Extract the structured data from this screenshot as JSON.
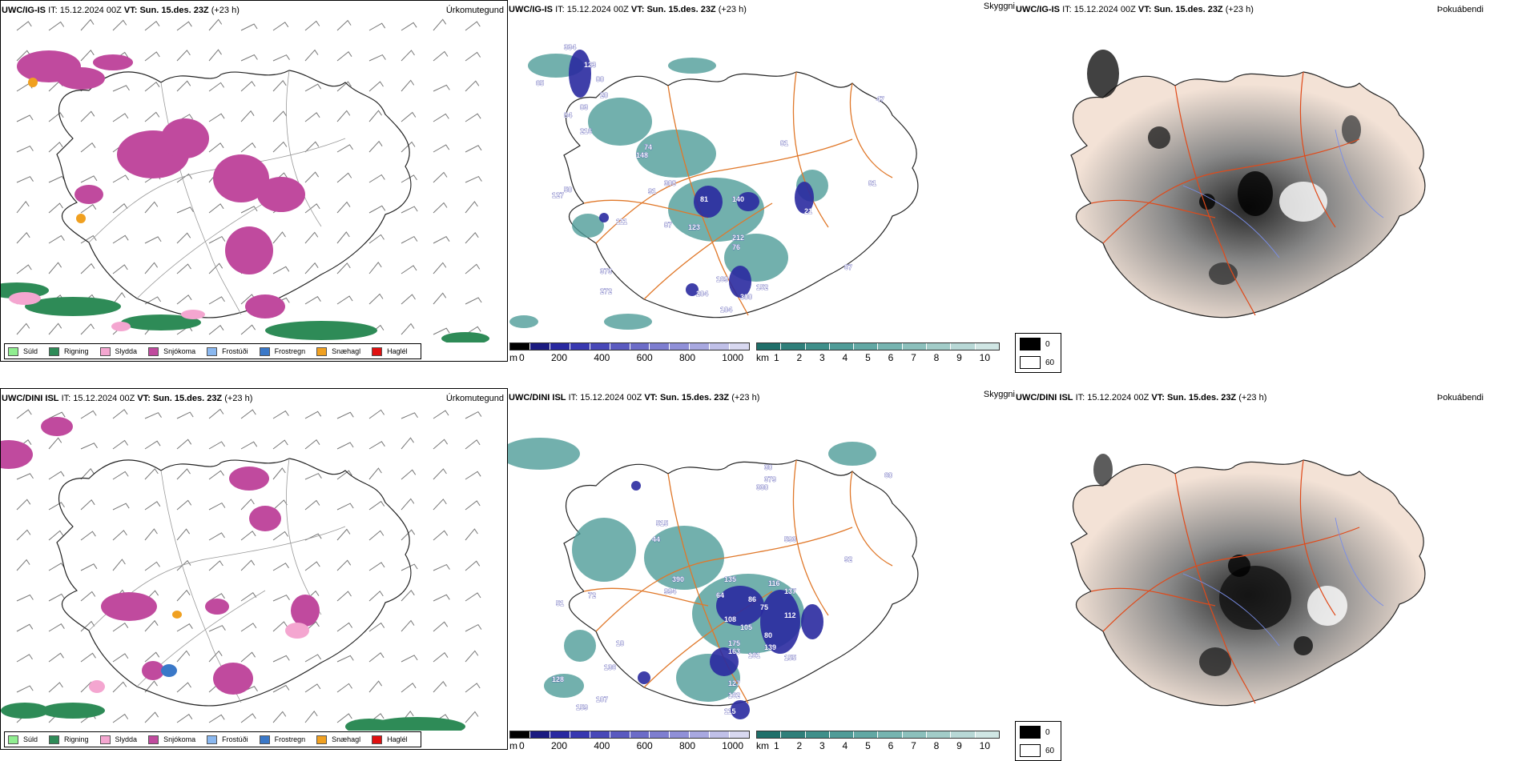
{
  "rows": [
    {
      "model": "UWC/IG-IS",
      "it_label": "IT:",
      "it_value": "15.12.2024 00Z",
      "vt_label": "VT:",
      "vt_value": "Sun. 15.des. 23Z",
      "lead": "(+23 h)",
      "precip_title": "Úrkomutegund",
      "cloud_title": "Skyggni",
      "fog_title": "Þokuábendi",
      "cloud_labels": [
        "334",
        "123",
        "80",
        "83",
        "84",
        "65",
        "20",
        "216",
        "74",
        "148",
        "308",
        "91",
        "50",
        "127",
        "111",
        "87",
        "81",
        "140",
        "21",
        "212",
        "123",
        "76",
        "169",
        "152",
        "300",
        "204",
        "104",
        "373",
        "272",
        "47",
        "81",
        "67",
        "81"
      ]
    },
    {
      "model": "UWC/DINI ISL",
      "it_label": "IT:",
      "it_value": "15.12.2024 00Z",
      "vt_label": "VT:",
      "vt_value": "Sun. 15.des. 23Z",
      "lead": "(+23 h)",
      "precip_title": "Úrkomutegund",
      "cloud_title": "Skyggni",
      "fog_title": "Þokuábendi",
      "cloud_labels": [
        "379",
        "30",
        "330",
        "60",
        "515",
        "44",
        "593",
        "92",
        "390",
        "994",
        "135",
        "116",
        "86",
        "137",
        "64",
        "75",
        "108",
        "112",
        "105",
        "175",
        "80",
        "139",
        "163",
        "161",
        "155",
        "127",
        "162",
        "115",
        "159",
        "107",
        "136",
        "128",
        "72",
        "18",
        "51"
      ]
    }
  ],
  "precip_legend": [
    {
      "label": "Súld",
      "color": "#90ee90"
    },
    {
      "label": "Rigning",
      "color": "#2e8b57"
    },
    {
      "label": "Slydda",
      "color": "#f4a6d0"
    },
    {
      "label": "Snjókoma",
      "color": "#c04a9e"
    },
    {
      "label": "Frostúði",
      "color": "#8ab8f0"
    },
    {
      "label": "Frostregn",
      "color": "#3a78c8"
    },
    {
      "label": "Snæhagl",
      "color": "#f0a020"
    },
    {
      "label": "Haglél",
      "color": "#e01010"
    }
  ],
  "cloud_base_scale": {
    "unit": "m",
    "ticks": [
      "0",
      "200",
      "400",
      "600",
      "800",
      "1000"
    ],
    "colors": [
      "#000000",
      "#1a1a80",
      "#2828a0",
      "#3838b0",
      "#4848b8",
      "#5a5ac0",
      "#6c6cc8",
      "#7e7ed0",
      "#9090d8",
      "#a8a8e0",
      "#c0c0e8",
      "#d8d8f0"
    ]
  },
  "visibility_scale": {
    "unit": "km",
    "ticks": [
      "1",
      "2",
      "3",
      "4",
      "5",
      "6",
      "7",
      "8",
      "9",
      "10"
    ],
    "colors": [
      "#1f6f6a",
      "#2f7f7a",
      "#3f8f8a",
      "#509c98",
      "#62a8a4",
      "#76b4b0",
      "#8cc0bc",
      "#a2ccc8",
      "#b8d8d6",
      "#d0e6e4"
    ]
  },
  "fog_key": [
    {
      "label": "0",
      "color": "#000000"
    },
    {
      "label": "60",
      "color": "#ffffff"
    }
  ]
}
